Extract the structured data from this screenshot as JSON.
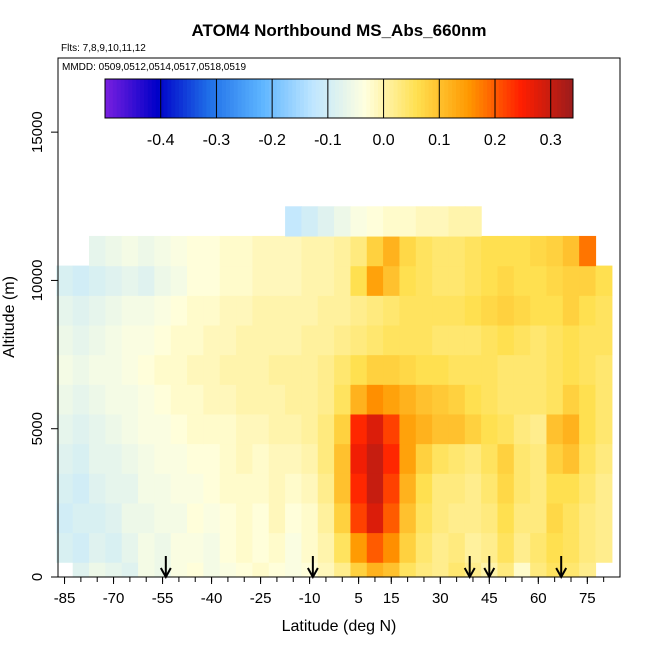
{
  "chart_data": {
    "type": "heatmap",
    "title": "ATOM4 Northbound MS_Abs_660nm",
    "flights_label": "Flts: 7,8,9,10,11,12",
    "dates_label": "MMDD: 0509,0512,0514,0517,0518,0519",
    "xlabel": "Latitude (deg N)",
    "ylabel": "Altitude (m)",
    "xlim": [
      -87,
      85
    ],
    "ylim": [
      0,
      17500
    ],
    "x_ticks": [
      -85,
      -70,
      -55,
      -40,
      -25,
      -10,
      5,
      15,
      30,
      45,
      60,
      75
    ],
    "y_ticks": [
      0,
      5000,
      10000,
      15000
    ],
    "colorbar": {
      "min": -0.5,
      "max": 0.34,
      "ticks": [
        -0.4,
        -0.3,
        -0.2,
        -0.1,
        0.0,
        0.1,
        0.2,
        0.3
      ],
      "tick_labels": [
        "-0.4",
        "-0.3",
        "-0.2",
        "-0.1",
        "0.0",
        "0.1",
        "0.2",
        "0.3"
      ],
      "colors": [
        "#7a1fe0",
        "#0000c8",
        "#1f6fe8",
        "#5cb4ff",
        "#bfe6ff",
        "#ffffdf",
        "#ffe050",
        "#ff9800",
        "#ff1e00",
        "#9b1c1c"
      ]
    },
    "flight_arrows_lat": [
      -54,
      -9,
      39,
      45,
      67
    ],
    "lat_grid": [
      -85,
      -80,
      -75,
      -70,
      -65,
      -60,
      -55,
      -50,
      -45,
      -40,
      -35,
      -30,
      -25,
      -20,
      -15,
      -10,
      -5,
      0,
      5,
      10,
      15,
      20,
      25,
      30,
      35,
      40,
      45,
      50,
      55,
      60,
      65,
      70,
      75,
      80
    ],
    "alt_grid": [
      0,
      1000,
      2000,
      3000,
      4000,
      5000,
      6000,
      7000,
      8000,
      9000,
      10000,
      11000,
      12000
    ],
    "values": [
      [
        null,
        -0.08,
        -0.06,
        -0.07,
        -0.08,
        -0.05,
        -0.06,
        -0.04,
        -0.03,
        -0.05,
        -0.04,
        -0.03,
        -0.02,
        -0.03,
        -0.04,
        -0.03,
        -0.01,
        0.02,
        0.08,
        0.12,
        0.1,
        0.05,
        0.03,
        0.02,
        0.04,
        0.02,
        0.0,
        0.03,
        -0.02,
        0.03,
        0.05,
        0.04,
        0.02,
        null
      ],
      [
        -0.09,
        -0.1,
        -0.08,
        -0.09,
        -0.07,
        -0.05,
        -0.06,
        -0.04,
        -0.04,
        -0.05,
        -0.03,
        -0.02,
        -0.03,
        -0.02,
        -0.04,
        -0.02,
        0.0,
        0.05,
        0.15,
        0.2,
        0.16,
        0.08,
        0.04,
        0.02,
        0.03,
        0.01,
        0.02,
        0.05,
        0.02,
        0.04,
        0.06,
        0.05,
        0.03,
        0.02
      ],
      [
        -0.1,
        -0.09,
        -0.09,
        -0.08,
        -0.06,
        -0.06,
        -0.05,
        -0.05,
        -0.03,
        -0.04,
        -0.03,
        -0.02,
        -0.03,
        -0.01,
        -0.03,
        -0.02,
        0.01,
        0.08,
        0.22,
        0.28,
        0.2,
        0.1,
        0.05,
        0.03,
        0.02,
        0.02,
        0.03,
        0.06,
        0.03,
        0.03,
        0.07,
        0.05,
        0.03,
        0.02
      ],
      [
        -0.09,
        -0.1,
        -0.08,
        -0.07,
        -0.07,
        -0.05,
        -0.05,
        -0.04,
        -0.04,
        -0.03,
        -0.02,
        -0.02,
        -0.02,
        -0.01,
        -0.02,
        -0.01,
        0.02,
        0.1,
        0.24,
        0.3,
        0.22,
        0.12,
        0.06,
        0.03,
        0.03,
        0.02,
        0.04,
        0.07,
        0.04,
        0.03,
        0.06,
        0.06,
        0.04,
        0.02
      ],
      [
        -0.08,
        -0.09,
        -0.07,
        -0.07,
        -0.06,
        -0.05,
        -0.04,
        -0.04,
        -0.03,
        -0.03,
        -0.02,
        -0.01,
        -0.02,
        -0.01,
        -0.01,
        0.0,
        0.03,
        0.1,
        0.26,
        0.3,
        0.24,
        0.14,
        0.08,
        0.05,
        0.04,
        0.03,
        0.05,
        0.08,
        0.04,
        0.03,
        0.08,
        0.1,
        0.05,
        0.03
      ],
      [
        -0.07,
        -0.08,
        -0.07,
        -0.06,
        -0.05,
        -0.04,
        -0.04,
        -0.03,
        -0.02,
        -0.02,
        -0.02,
        -0.01,
        -0.01,
        0.0,
        0.0,
        0.01,
        0.03,
        0.08,
        0.24,
        0.28,
        0.22,
        0.14,
        0.12,
        0.1,
        0.1,
        0.08,
        0.06,
        0.05,
        0.03,
        0.02,
        0.1,
        0.12,
        0.06,
        0.04
      ],
      [
        -0.06,
        -0.07,
        -0.06,
        -0.05,
        -0.05,
        -0.04,
        -0.03,
        -0.02,
        -0.02,
        -0.01,
        -0.01,
        0.0,
        0.0,
        0.0,
        0.01,
        0.01,
        0.02,
        0.05,
        0.12,
        0.16,
        0.14,
        0.12,
        0.1,
        0.09,
        0.08,
        0.06,
        0.05,
        0.04,
        0.04,
        0.04,
        0.05,
        0.08,
        0.06,
        0.04
      ],
      [
        -0.05,
        -0.06,
        -0.05,
        -0.05,
        -0.04,
        -0.03,
        -0.02,
        -0.02,
        -0.01,
        -0.01,
        0.0,
        0.0,
        0.0,
        0.01,
        0.01,
        0.01,
        0.02,
        0.04,
        0.06,
        0.08,
        0.08,
        0.07,
        0.06,
        0.06,
        0.05,
        0.05,
        0.05,
        0.04,
        0.04,
        0.04,
        0.05,
        0.06,
        0.05,
        0.04
      ],
      [
        -0.06,
        -0.07,
        -0.06,
        -0.05,
        -0.04,
        -0.04,
        -0.03,
        -0.02,
        -0.02,
        -0.01,
        -0.01,
        0.0,
        0.0,
        0.0,
        0.0,
        0.01,
        0.01,
        0.02,
        0.03,
        0.04,
        0.05,
        0.05,
        0.05,
        0.04,
        0.04,
        0.04,
        0.05,
        0.06,
        0.05,
        0.04,
        0.05,
        0.06,
        0.05,
        0.05
      ],
      [
        -0.07,
        -0.08,
        -0.07,
        -0.06,
        -0.05,
        -0.05,
        -0.04,
        -0.03,
        -0.02,
        -0.02,
        -0.01,
        -0.01,
        0.0,
        0.0,
        0.0,
        0.0,
        0.01,
        0.01,
        0.02,
        0.03,
        0.04,
        0.05,
        0.05,
        0.05,
        0.05,
        0.06,
        0.07,
        0.08,
        0.07,
        0.06,
        0.06,
        0.08,
        0.06,
        0.05
      ],
      [
        -0.09,
        -0.1,
        -0.09,
        -0.08,
        -0.07,
        -0.08,
        -0.06,
        -0.05,
        -0.03,
        -0.03,
        -0.02,
        -0.02,
        -0.01,
        -0.01,
        -0.01,
        0.0,
        0.0,
        0.01,
        0.06,
        0.14,
        0.1,
        0.06,
        0.05,
        0.04,
        0.04,
        0.05,
        0.06,
        0.07,
        0.06,
        0.06,
        0.07,
        0.08,
        0.08,
        0.06
      ],
      [
        null,
        null,
        -0.07,
        -0.06,
        -0.05,
        -0.06,
        -0.05,
        -0.04,
        -0.03,
        -0.03,
        -0.02,
        -0.02,
        -0.01,
        -0.01,
        -0.01,
        0.0,
        0.0,
        0.01,
        0.03,
        0.08,
        0.12,
        0.07,
        0.05,
        0.04,
        0.04,
        0.05,
        0.06,
        0.06,
        0.06,
        0.07,
        0.08,
        0.1,
        0.18,
        null
      ],
      [
        null,
        null,
        null,
        null,
        null,
        null,
        null,
        null,
        null,
        null,
        null,
        null,
        null,
        null,
        -0.12,
        -0.1,
        -0.08,
        -0.06,
        -0.04,
        -0.03,
        -0.02,
        -0.02,
        -0.01,
        -0.01,
        0.0,
        0.0,
        null,
        null,
        null,
        null,
        null,
        null,
        null,
        null
      ]
    ]
  }
}
